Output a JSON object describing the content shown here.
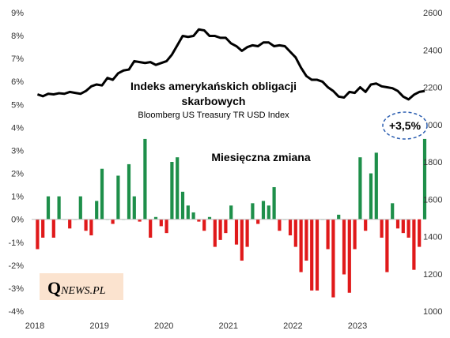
{
  "chart_data": {
    "type": "bar+line",
    "annotations": {
      "line_title_1": "Indeks amerykańskich obligacji",
      "line_title_2": "skarbowych",
      "line_subtitle": "Bloomberg US Treasury TR USD Index",
      "bar_title": "Miesięczna zmiana",
      "callout": "+3,5%"
    },
    "logo": {
      "q": "Q",
      "rest": "NEWS.PL"
    },
    "x_axis": {
      "ticks": [
        "2018",
        "2019",
        "2020",
        "2021",
        "2022",
        "2023"
      ],
      "start_year": 2018
    },
    "y_left": {
      "min": -4,
      "max": 9,
      "ticks": [
        "-4%",
        "-3%",
        "-2%",
        "-1%",
        "0%",
        "1%",
        "2%",
        "3%",
        "4%",
        "5%",
        "6%",
        "7%",
        "8%",
        "9%"
      ]
    },
    "y_right": {
      "min": 1000,
      "max": 2600,
      "ticks": [
        "1000",
        "1200",
        "1400",
        "1600",
        "1800",
        "2000",
        "2200",
        "2400",
        "2600"
      ]
    },
    "colors": {
      "positive": "#1e8f4a",
      "negative": "#e0191a",
      "line": "#000000",
      "callout_border": "#2a5db0"
    },
    "series": [
      {
        "kind": "bar",
        "axis": "left",
        "unit": "%",
        "values": [
          -1.3,
          -0.8,
          1.0,
          -0.8,
          1.0,
          0.0,
          -0.4,
          0.0,
          1.0,
          -0.5,
          -0.7,
          0.8,
          2.2,
          0.0,
          -0.2,
          1.9,
          0.0,
          2.4,
          1.0,
          -0.1,
          3.5,
          -0.8,
          0.1,
          -0.3,
          -0.6,
          2.5,
          2.7,
          1.2,
          0.6,
          0.3,
          -0.1,
          -0.5,
          0.1,
          -1.2,
          -0.9,
          -0.6,
          0.6,
          -1.1,
          -1.8,
          -1.2,
          0.7,
          -0.2,
          0.8,
          0.6,
          1.4,
          -0.5,
          0.0,
          -0.7,
          -1.2,
          -2.3,
          -1.8,
          -3.1,
          -3.1,
          0.0,
          -1.3,
          -3.4,
          0.2,
          -2.4,
          -3.2,
          -1.3,
          2.7,
          -0.5,
          2.0,
          2.9,
          -0.8,
          -2.3,
          0.7,
          -0.4,
          -0.6,
          -0.8,
          -2.2,
          -1.2,
          3.5
        ]
      },
      {
        "kind": "line",
        "axis": "right",
        "unit": "index",
        "values": [
          2162,
          2152,
          2165,
          2162,
          2168,
          2165,
          2175,
          2170,
          2165,
          2180,
          2205,
          2215,
          2210,
          2250,
          2240,
          2275,
          2290,
          2295,
          2340,
          2335,
          2330,
          2335,
          2320,
          2330,
          2340,
          2375,
          2425,
          2475,
          2470,
          2475,
          2510,
          2505,
          2475,
          2475,
          2465,
          2465,
          2435,
          2420,
          2395,
          2415,
          2425,
          2420,
          2440,
          2440,
          2420,
          2425,
          2420,
          2390,
          2360,
          2305,
          2260,
          2240,
          2240,
          2230,
          2200,
          2180,
          2150,
          2145,
          2175,
          2170,
          2200,
          2175,
          2215,
          2220,
          2205,
          2200,
          2195,
          2180,
          2150,
          2135,
          2160,
          2175,
          2180
        ]
      }
    ]
  }
}
